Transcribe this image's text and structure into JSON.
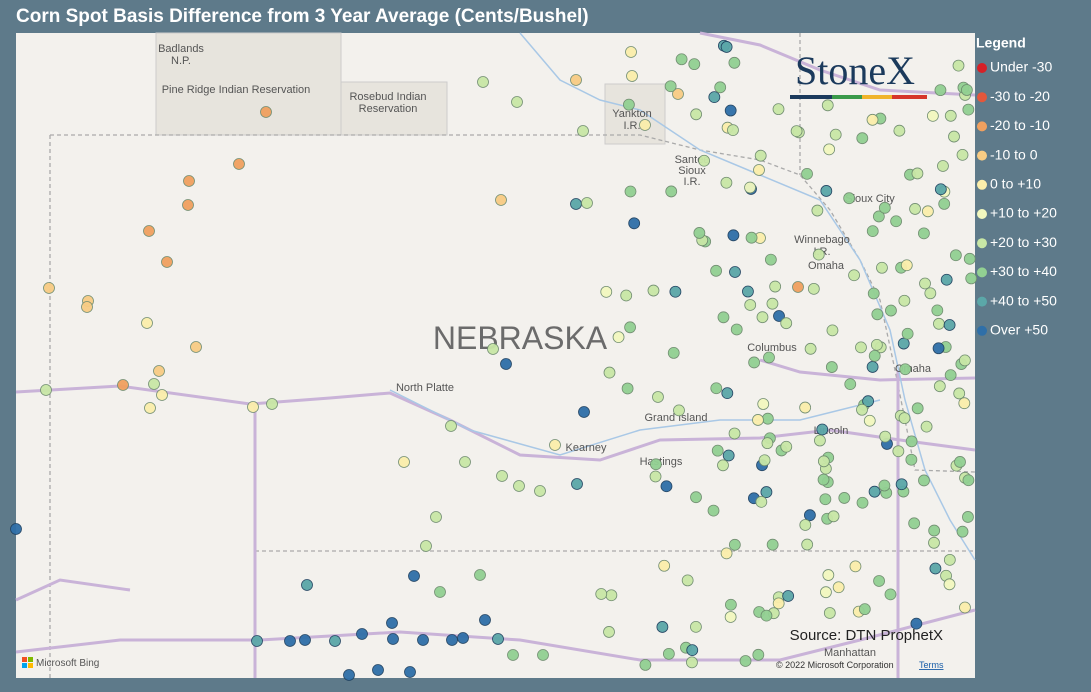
{
  "header": {
    "title": "Corn Spot Basis Difference from 3 Year Average (Cents/Bushel)"
  },
  "legend": {
    "title": "Legend",
    "items": [
      {
        "label": "Under -30",
        "color": "#d62027"
      },
      {
        "label": "-30 to -20",
        "color": "#e4573b"
      },
      {
        "label": "-20 to -10",
        "color": "#f0a05f"
      },
      {
        "label": "-10 to 0",
        "color": "#f8cc84"
      },
      {
        "label": "0 to +10",
        "color": "#fbeeab"
      },
      {
        "label": "+10 to +20",
        "color": "#f2f8bf"
      },
      {
        "label": "+20 to +30",
        "color": "#c8e7a6"
      },
      {
        "label": "+30 to +40",
        "color": "#92d092"
      },
      {
        "label": "+40 to +50",
        "color": "#5ba7a8"
      },
      {
        "label": "Over +50",
        "color": "#2f6fa8"
      }
    ]
  },
  "map": {
    "state_label": "NEBRASKA",
    "places": [
      [
        "Badlands",
        "N.P."
      ],
      "Pine Ridge Indian Reservation",
      [
        "Rosebud Indian",
        "Reservation"
      ],
      [
        "Yankton",
        "I.R."
      ],
      [
        "Santee",
        "Sioux",
        "I.R."
      ],
      "Sioux City",
      [
        "Winnebago",
        "I.R."
      ],
      "Omaha",
      "Columbus",
      "Omaha",
      "North Platte",
      "Grand Island",
      "Kearney",
      "Hastings",
      "Lincoln",
      "Manhattan"
    ]
  },
  "logo": "StoneX",
  "source": "Source: DTN ProphetX",
  "attribution": {
    "bing": "Microsoft Bing",
    "copyright": "© 2022 Microsoft Corporation",
    "terms": "Terms"
  }
}
